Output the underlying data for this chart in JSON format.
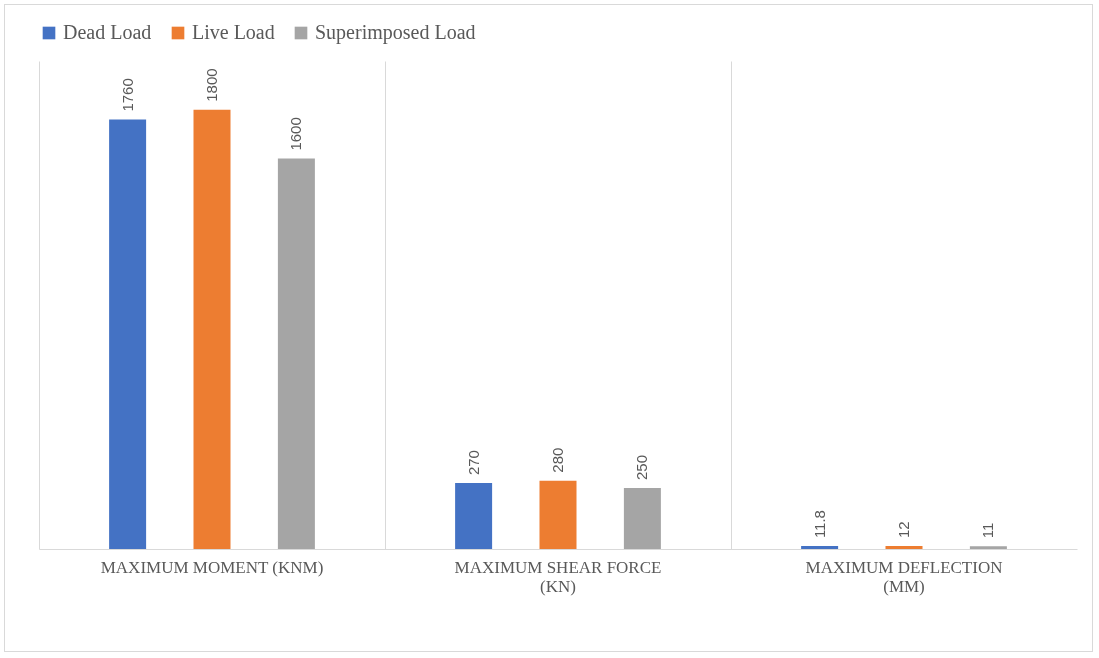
{
  "chart_data": {
    "type": "bar",
    "categories": [
      "MAXIMUM MOMENT (KNM)",
      "MAXIMUM SHEAR FORCE (KN)",
      "MAXIMUM DEFLECTION (MM)"
    ],
    "series": [
      {
        "name": "Dead Load",
        "color": "#4472c4",
        "values": [
          1760,
          270,
          11.8
        ]
      },
      {
        "name": "Live Load",
        "color": "#ed7d31",
        "values": [
          1800,
          280,
          12
        ]
      },
      {
        "name": "Superimposed Load",
        "color": "#a5a5a5",
        "values": [
          1600,
          250,
          11
        ]
      }
    ],
    "ylim": [
      0,
      2000
    ],
    "tick_labels": "x",
    "grid": "x",
    "legend": "top",
    "data_labels": true
  }
}
